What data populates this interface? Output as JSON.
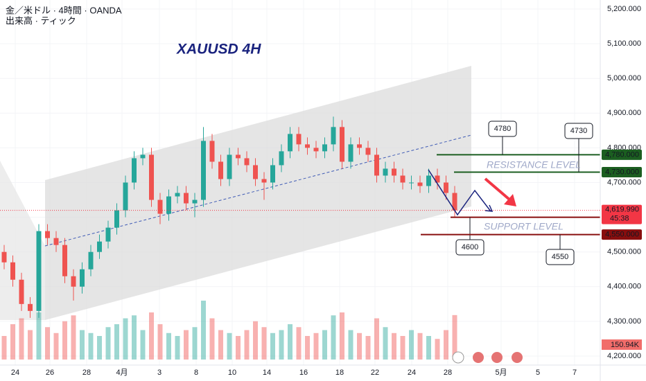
{
  "header": {
    "symbol": "金／米ドル · 4時間 · OANDA",
    "volume_title": "出来高 · ティック"
  },
  "chart_data": {
    "type": "candlestick",
    "title": "XAUUSD 4H",
    "annotations": {
      "resistance": "RESISTANCE LEVEL",
      "support": "SUPPORT LEVEL"
    },
    "up_color": "#26a69a",
    "down_color": "#ef5350",
    "xlim": [
      0,
      34.4
    ],
    "ylim": [
      4174,
      5226
    ],
    "xticks": [
      {
        "value": 0.88,
        "label": "24"
      },
      {
        "value": 2.88,
        "label": "26"
      },
      {
        "value": 5.0,
        "label": "28"
      },
      {
        "value": 7.04,
        "label": "4月"
      },
      {
        "value": 9.2,
        "label": "3"
      },
      {
        "value": 11.32,
        "label": "8"
      },
      {
        "value": 13.4,
        "label": "10"
      },
      {
        "value": 15.4,
        "label": "14"
      },
      {
        "value": 17.52,
        "label": "16"
      },
      {
        "value": 19.6,
        "label": "18"
      },
      {
        "value": 21.64,
        "label": "22"
      },
      {
        "value": 23.76,
        "label": "24"
      },
      {
        "value": 25.84,
        "label": "28"
      },
      {
        "value": 28.92,
        "label": "5月"
      },
      {
        "value": 31.04,
        "label": "5"
      },
      {
        "value": 33.16,
        "label": "7"
      }
    ],
    "yticks": [
      {
        "value": 4200,
        "label": "4,200.000"
      },
      {
        "value": 4300,
        "label": "4,300.000"
      },
      {
        "value": 4400,
        "label": "4,400.000"
      },
      {
        "value": 4500,
        "label": "4,500.000"
      },
      {
        "value": 4600,
        "label": "4,600.000"
      },
      {
        "value": 4700,
        "label": "4,700.000"
      },
      {
        "value": 4800,
        "label": "4,800.000"
      },
      {
        "value": 4900,
        "label": "4,900.000"
      },
      {
        "value": 5000,
        "label": "5,000.000"
      },
      {
        "value": 5100,
        "label": "5,100.000"
      },
      {
        "value": 5200,
        "label": "5,200.000"
      }
    ],
    "x": [
      0.24,
      0.74,
      1.24,
      1.74,
      2.24,
      2.74,
      3.24,
      3.74,
      4.24,
      4.74,
      5.24,
      5.74,
      6.24,
      6.74,
      7.24,
      7.74,
      8.24,
      8.74,
      9.24,
      9.74,
      10.24,
      10.74,
      11.24,
      11.74,
      12.24,
      12.74,
      13.24,
      13.74,
      14.24,
      14.74,
      15.24,
      15.74,
      16.24,
      16.74,
      17.24,
      17.74,
      18.24,
      18.74,
      19.24,
      19.74,
      20.24,
      20.74,
      21.24,
      21.74,
      22.24,
      22.74,
      23.24,
      23.74,
      24.24,
      24.74,
      25.24,
      25.74,
      26.24
    ],
    "open": [
      4500,
      4470,
      4420,
      4350,
      4330,
      4560,
      4540,
      4520,
      4430,
      4400,
      4450,
      4500,
      4530,
      4570,
      4620,
      4700,
      4770,
      4780,
      4650,
      4610,
      4660,
      4670,
      4640,
      4650,
      4820,
      4760,
      4710,
      4780,
      4770,
      4750,
      4710,
      4700,
      4750,
      4790,
      4840,
      4810,
      4800,
      4790,
      4810,
      4860,
      4760,
      4810,
      4800,
      4780,
      4720,
      4740,
      4720,
      4700,
      4700,
      4690,
      4720,
      4700,
      4670
    ],
    "high": [
      4520,
      4490,
      4440,
      4370,
      4580,
      4580,
      4560,
      4540,
      4450,
      4470,
      4520,
      4550,
      4590,
      4640,
      4720,
      4790,
      4800,
      4800,
      4670,
      4680,
      4690,
      4690,
      4670,
      4860,
      4840,
      4780,
      4800,
      4800,
      4790,
      4770,
      4730,
      4770,
      4810,
      4860,
      4860,
      4830,
      4820,
      4830,
      4890,
      4880,
      4830,
      4830,
      4820,
      4800,
      4760,
      4760,
      4740,
      4720,
      4720,
      4740,
      4740,
      4720,
      4690
    ],
    "low": [
      4450,
      4400,
      4330,
      4310,
      4310,
      4520,
      4500,
      4410,
      4360,
      4380,
      4430,
      4480,
      4510,
      4550,
      4600,
      4680,
      4750,
      4630,
      4580,
      4590,
      4640,
      4620,
      4600,
      4630,
      4740,
      4690,
      4690,
      4750,
      4730,
      4690,
      4650,
      4680,
      4730,
      4770,
      4790,
      4780,
      4770,
      4770,
      4790,
      4740,
      4740,
      4780,
      4760,
      4700,
      4700,
      4700,
      4680,
      4680,
      4670,
      4670,
      4680,
      4650,
      4600
    ],
    "close": [
      4470,
      4420,
      4350,
      4330,
      4560,
      4540,
      4520,
      4430,
      4400,
      4450,
      4500,
      4530,
      4570,
      4620,
      4700,
      4770,
      4780,
      4650,
      4610,
      4660,
      4670,
      4640,
      4650,
      4820,
      4760,
      4710,
      4780,
      4770,
      4750,
      4710,
      4700,
      4750,
      4790,
      4840,
      4810,
      4800,
      4790,
      4810,
      4860,
      4760,
      4810,
      4800,
      4780,
      4720,
      4740,
      4720,
      4700,
      4700,
      4690,
      4720,
      4700,
      4670,
      4619.99
    ],
    "volumes": [
      80,
      120,
      140,
      100,
      160,
      110,
      90,
      130,
      150,
      100,
      90,
      80,
      110,
      120,
      140,
      150,
      100,
      160,
      120,
      90,
      80,
      100,
      110,
      200,
      140,
      100,
      90,
      80,
      100,
      130,
      110,
      90,
      100,
      120,
      110,
      80,
      90,
      100,
      150,
      160,
      100,
      90,
      80,
      140,
      110,
      90,
      80,
      100,
      90,
      80,
      70,
      100,
      150.94
    ],
    "volume_label": "150.94K",
    "levels": [
      {
        "value": 4780,
        "label": "4,780.000",
        "color": "#1b5e20"
      },
      {
        "value": 4730,
        "label": "4,730.000",
        "color": "#1b5e20"
      },
      {
        "value": 4600,
        "label": "4,600.000",
        "color": "#880e0e"
      },
      {
        "value": 4550,
        "label": "4,550.000",
        "color": "#880e0e"
      }
    ],
    "last_price": {
      "value": 4619.99,
      "label": "4,619.990",
      "countdown": "45:38",
      "color": "#f23645"
    }
  }
}
